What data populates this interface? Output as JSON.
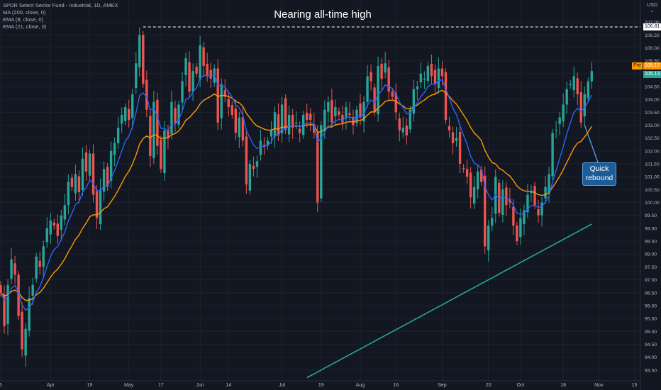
{
  "legend": {
    "symbol": "SPDR Select Sector Fund - Industrial, 1D, AMEX",
    "ind1": "MA (200, close, 0)",
    "ind2": "EMA (8, close, 0)",
    "ind3": "EMA (21, close, 0)"
  },
  "annotations": {
    "title": "Nearing all-time high",
    "callout": "Quick rebound"
  },
  "axis": {
    "currency": "USD",
    "ath_label": "106.81",
    "pre_badge": "Pre",
    "pre_value": "105.17",
    "last_value": "105.13"
  },
  "colors": {
    "background": "#131722",
    "up": "#26a69a",
    "down": "#ef5350",
    "ema8": "#2962ff",
    "ema21": "#ff9800",
    "ma200": "#26a69a",
    "pre_tag": "#ff9800",
    "last_tag": "#26a69a"
  },
  "chart_data": {
    "type": "candlestick",
    "title": "Nearing all-time high",
    "ylim": [
      93.25,
      107.25
    ],
    "y_ticks": [
      "93.50",
      "94.00",
      "94.50",
      "95.00",
      "95.50",
      "96.00",
      "96.50",
      "97.00",
      "97.50",
      "98.00",
      "98.50",
      "99.00",
      "99.50",
      "100.00",
      "100.50",
      "101.00",
      "101.50",
      "102.00",
      "102.50",
      "103.00",
      "103.50",
      "104.00",
      "104.50",
      "105.00",
      "105.50",
      "106.00",
      "106.50",
      "107.00"
    ],
    "x_ticks": [
      {
        "label": "5",
        "day": 0
      },
      {
        "label": "Apr",
        "day": 14
      },
      {
        "label": "19",
        "day": 25
      },
      {
        "label": "May",
        "day": 36
      },
      {
        "label": "17",
        "day": 45
      },
      {
        "label": "Jun",
        "day": 56
      },
      {
        "label": "14",
        "day": 64
      },
      {
        "label": "Jul",
        "day": 79
      },
      {
        "label": "19",
        "day": 90
      },
      {
        "label": "Aug",
        "day": 101
      },
      {
        "label": "16",
        "day": 111
      },
      {
        "label": "Sep",
        "day": 124
      },
      {
        "label": "20",
        "day": 137
      },
      {
        "label": "Oct",
        "day": 146
      },
      {
        "label": "18",
        "day": 158
      },
      {
        "label": "Nov",
        "day": 168
      },
      {
        "label": "15",
        "day": 178
      }
    ],
    "closes": [
      96.5,
      95.2,
      96.8,
      97.8,
      97.2,
      95.6,
      94.3,
      95.1,
      96.3,
      96.8,
      97.9,
      97.5,
      98.3,
      99.0,
      99.3,
      99.1,
      98.7,
      99.5,
      99.9,
      100.8,
      100.6,
      101.1,
      100.4,
      101.7,
      101.2,
      101.9,
      100.3,
      99.4,
      100.5,
      101.3,
      100.6,
      102.0,
      102.3,
      102.9,
      103.4,
      103.7,
      103.2,
      104.2,
      105.4,
      106.5,
      104.6,
      103.6,
      101.8,
      103.9,
      102.2,
      101.3,
      102.8,
      102.5,
      103.9,
      103.1,
      103.8,
      104.7,
      105.6,
      104.3,
      105.1,
      105.0,
      106.1,
      105.3,
      104.9,
      104.8,
      105.2,
      103.1,
      104.6,
      104.1,
      103.7,
      103.4,
      102.7,
      103.3,
      102.4,
      100.7,
      101.5,
      101.3,
      101.6,
      102.4,
      102.2,
      102.4,
      102.8,
      103.5,
      102.6,
      103.8,
      102.8,
      103.4,
      102.9,
      103.1,
      102.7,
      103.4,
      103.2,
      103.2,
      102.7,
      100.0,
      103.0,
      103.6,
      103.9,
      103.1,
      103.7,
      103.4,
      103.1,
      103.7,
      103.4,
      103.0,
      103.6,
      103.3,
      103.9,
      104.9,
      104.7,
      103.5,
      105.3,
      104.8,
      105.4,
      104.3,
      104.1,
      103.5,
      102.8,
      102.9,
      102.6,
      103.6,
      104.4,
      104.5,
      105.0,
      104.8,
      105.3,
      104.9,
      104.6,
      105.2,
      104.9,
      103.2,
      102.8,
      102.3,
      102.5,
      101.5,
      101.3,
      101.0,
      100.2,
      100.6,
      101.2,
      100.8,
      98.3,
      99.1,
      99.4,
      101.0,
      99.6,
      100.5,
      99.9,
      100.0,
      99.1,
      98.5,
      99.4,
      99.7,
      100.3,
      100.4,
      99.9,
      99.5,
      100.0,
      100.6,
      101.1,
      102.7,
      102.8,
      103.3,
      103.8,
      104.4,
      104.6,
      104.9,
      104.2,
      103.1,
      104.2,
      104.7,
      105.1
    ],
    "ath": 106.81,
    "pre_price": 105.17,
    "last_price": 105.13
  }
}
